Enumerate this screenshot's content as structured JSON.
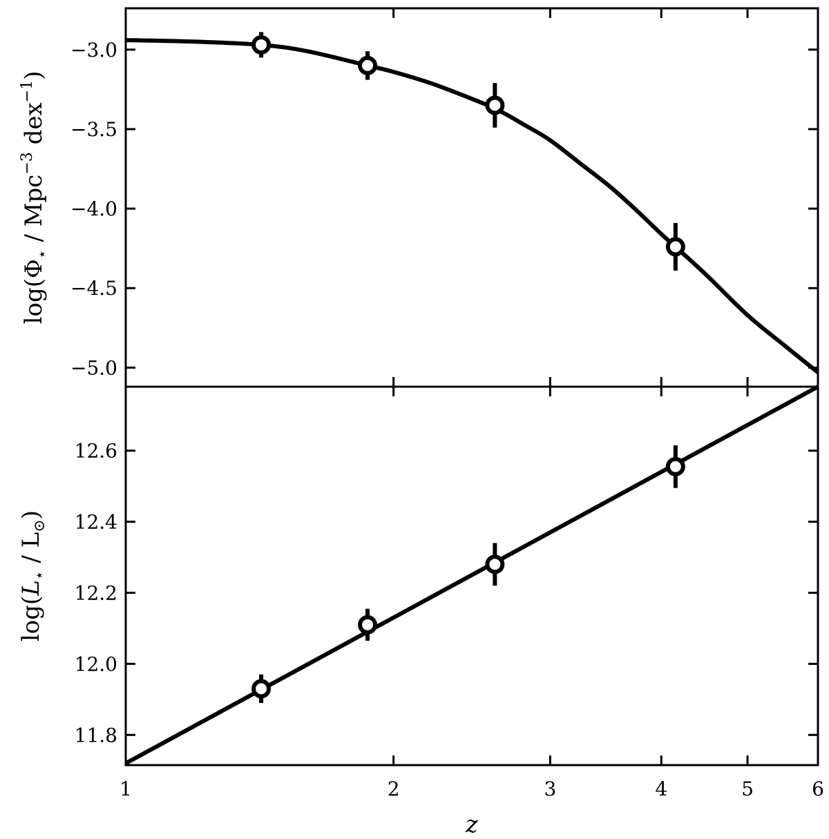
{
  "chart_data": [
    {
      "type": "line",
      "panel": "top",
      "title": "",
      "xlabel": "z",
      "ylabel": "log(Φ⋆ / Mpc⁻³ dex⁻¹)",
      "x_scale": "log",
      "xlim": [
        1,
        6
      ],
      "ylim": [
        -5.12,
        -2.74
      ],
      "y_ticks": [
        -3.0,
        -3.5,
        -4.0,
        -4.5,
        -5.0
      ],
      "y_tick_labels": [
        "−3.0",
        "−3.5",
        "−4.0",
        "−4.5",
        "−5.0"
      ],
      "grid": false,
      "points": [
        {
          "z": 1.42,
          "y": -2.97,
          "err": 0.08
        },
        {
          "z": 1.87,
          "y": -3.1,
          "err": 0.09
        },
        {
          "z": 2.6,
          "y": -3.35,
          "err": 0.14
        },
        {
          "z": 4.15,
          "y": -4.24,
          "err": 0.15
        }
      ],
      "fit_curve": {
        "z": [
          1.0,
          1.2,
          1.42,
          1.6,
          1.87,
          2.0,
          2.2,
          2.4,
          2.6,
          2.8,
          3.0,
          3.25,
          3.5,
          3.75,
          4.0,
          4.15,
          4.5,
          5.0,
          5.5,
          6.0
        ],
        "y": [
          -2.94,
          -2.95,
          -2.97,
          -3.01,
          -3.1,
          -3.14,
          -3.21,
          -3.29,
          -3.37,
          -3.47,
          -3.57,
          -3.72,
          -3.86,
          -4.01,
          -4.16,
          -4.24,
          -4.42,
          -4.67,
          -4.86,
          -5.03
        ]
      }
    },
    {
      "type": "line",
      "panel": "bottom",
      "title": "",
      "xlabel": "z",
      "ylabel": "log(L⋆ / L⊙)",
      "x_scale": "log",
      "xlim": [
        1,
        6
      ],
      "ylim": [
        11.715,
        12.78
      ],
      "x_ticks": [
        1,
        2,
        3,
        4,
        5,
        6
      ],
      "x_tick_labels": [
        "1",
        "2",
        "3",
        "4",
        "5",
        "6"
      ],
      "y_ticks": [
        11.8,
        12.0,
        12.2,
        12.4,
        12.6
      ],
      "y_tick_labels": [
        "11.8",
        "12.0",
        "12.2",
        "12.4",
        "12.6"
      ],
      "grid": false,
      "points": [
        {
          "z": 1.42,
          "y": 11.93,
          "err": 0.04
        },
        {
          "z": 1.87,
          "y": 12.11,
          "err": 0.045
        },
        {
          "z": 2.6,
          "y": 12.28,
          "err": 0.06
        },
        {
          "z": 4.15,
          "y": 12.555,
          "err": 0.06
        }
      ],
      "fit_curve": {
        "z": [
          1.0,
          6.0
        ],
        "y": [
          11.72,
          12.78
        ]
      }
    }
  ],
  "labels": {
    "top_ylabel_prefix": "log(Φ",
    "top_ylabel_sub": "⋆",
    "top_ylabel_mid": " / Mpc",
    "top_ylabel_sup1": "−3",
    "top_ylabel_mid2": " dex",
    "top_ylabel_sup2": "−1",
    "top_ylabel_suffix": ")",
    "bottom_ylabel_prefix": "log(",
    "bottom_ylabel_L": "L",
    "bottom_ylabel_sub": "⋆",
    "bottom_ylabel_mid": " / L",
    "bottom_ylabel_sub2": "⊙",
    "bottom_ylabel_suffix": ")",
    "xlabel": "z"
  }
}
